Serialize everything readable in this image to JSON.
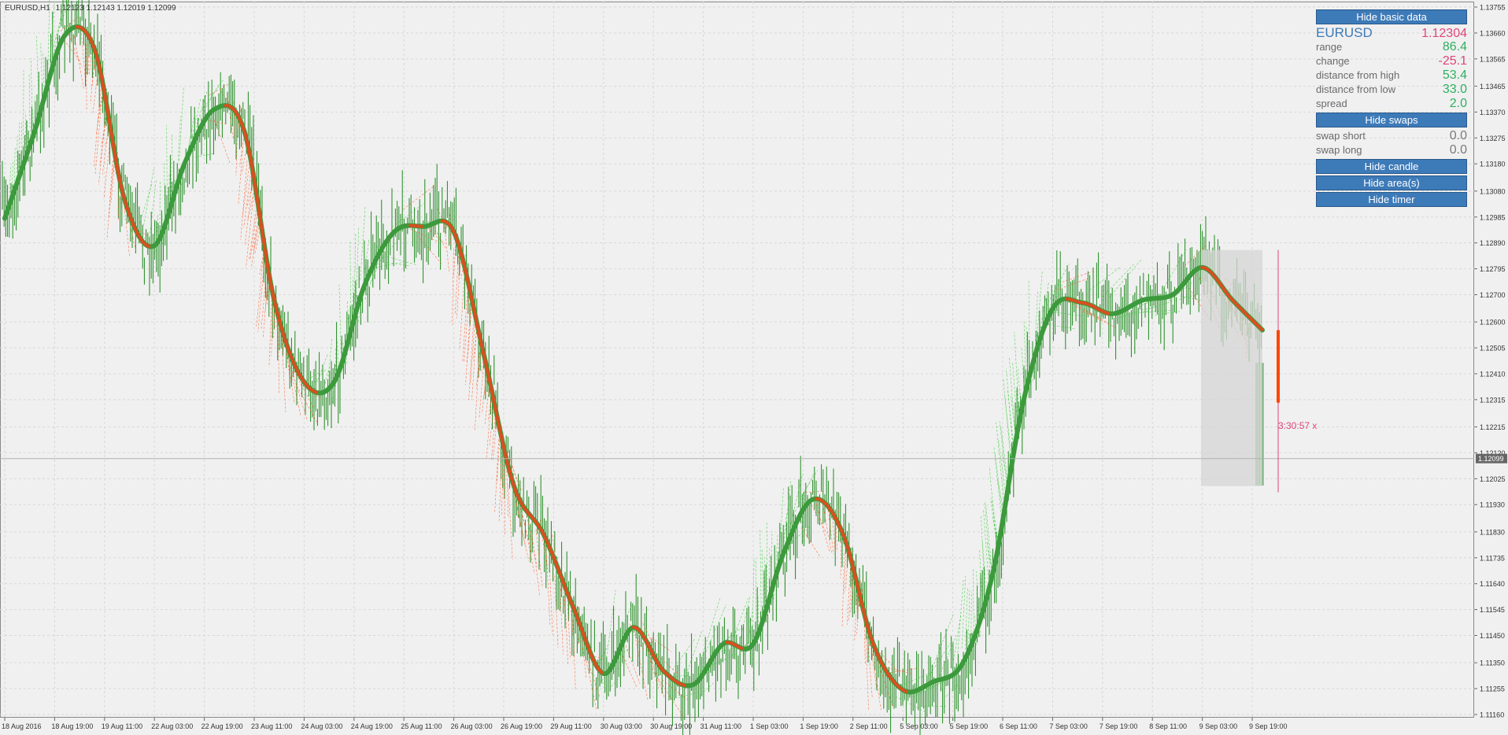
{
  "header": {
    "symbol_tf": "EURUSD,H1",
    "ohlc": "1.12123 1.12143 1.12019 1.12099"
  },
  "panel": {
    "hide_basic_label": "Hide basic data",
    "symbol": "EURUSD",
    "price": "1.12304",
    "rows": [
      {
        "label": "range",
        "value": "86.4"
      },
      {
        "label": "change",
        "value": "-25.1"
      },
      {
        "label": "distance from high",
        "value": "53.4"
      },
      {
        "label": "distance from low",
        "value": "33.0"
      },
      {
        "label": "spread",
        "value": "2.0"
      }
    ],
    "hide_swaps_label": "Hide swaps",
    "swaps": [
      {
        "label": "swap short",
        "value": "0.0"
      },
      {
        "label": "swap long",
        "value": "0.0"
      }
    ],
    "hide_candle_label": "Hide candle",
    "hide_areas_label": "Hide area(s)",
    "hide_timer_label": "Hide timer"
  },
  "timer": "3:30:57 x",
  "colors": {
    "up": "#1e8a1e",
    "down": "#ff4500",
    "trend_up": "#3c9a3c",
    "trend_down": "#d94f21",
    "fan_up": "#33cc33",
    "fan_down": "#ff5522",
    "panel_btn": "#3d7ab8",
    "pos_value": "#2eb060",
    "neg_value": "#e0457a",
    "neutral_value": "#7a7a7a",
    "timer": "#e0457a"
  },
  "chart_data": {
    "type": "line",
    "symbol": "EURUSD",
    "timeframe": "H1",
    "last_price": 1.12099,
    "ylim": [
      1.1116,
      1.1375
    ],
    "y_ticks": [
      "1.13755",
      "1.13660",
      "1.13565",
      "1.13465",
      "1.13370",
      "1.13275",
      "1.13180",
      "1.13080",
      "1.12985",
      "1.12890",
      "1.12795",
      "1.12700",
      "1.12600",
      "1.12505",
      "1.12410",
      "1.12315",
      "1.12215",
      "1.12120",
      "1.12025",
      "1.11930",
      "1.11830",
      "1.11735",
      "1.11640",
      "1.11545",
      "1.11450",
      "1.11350",
      "1.11255",
      "1.11160"
    ],
    "x_ticks": [
      "18 Aug 2016",
      "18 Aug 19:00",
      "19 Aug 11:00",
      "22 Aug 03:00",
      "22 Aug 19:00",
      "23 Aug 11:00",
      "24 Aug 03:00",
      "24 Aug 19:00",
      "25 Aug 11:00",
      "26 Aug 03:00",
      "26 Aug 19:00",
      "29 Aug 11:00",
      "30 Aug 03:00",
      "30 Aug 19:00",
      "31 Aug 11:00",
      "1 Sep 03:00",
      "1 Sep 19:00",
      "2 Sep 11:00",
      "5 Sep 03:00",
      "5 Sep 19:00",
      "6 Sep 11:00",
      "7 Sep 03:00",
      "7 Sep 19:00",
      "8 Sep 11:00",
      "9 Sep 03:00",
      "9 Sep 19:00"
    ],
    "grid": true,
    "series": [
      {
        "values": [
          1.1298,
          1.133,
          1.1365,
          1.136,
          1.1305,
          1.1288,
          1.1318,
          1.1338,
          1.133,
          1.1268,
          1.1238,
          1.1238,
          1.1273,
          1.1293,
          1.1295,
          1.1293,
          1.1248,
          1.12,
          1.1182,
          1.1155,
          1.1131,
          1.1148,
          1.1132,
          1.1127,
          1.1142,
          1.1142,
          1.1175,
          1.1195,
          1.1182,
          1.1142,
          1.1125,
          1.1128,
          1.1135,
          1.1168,
          1.123,
          1.1265,
          1.1267,
          1.1263,
          1.1268,
          1.127,
          1.128,
          1.1268,
          1.1257
        ]
      }
    ],
    "session_box": {
      "from": "8 Sep 19:00",
      "to": "9 Sep 11:00",
      "high": 1.12864,
      "low": 1.11998
    }
  }
}
